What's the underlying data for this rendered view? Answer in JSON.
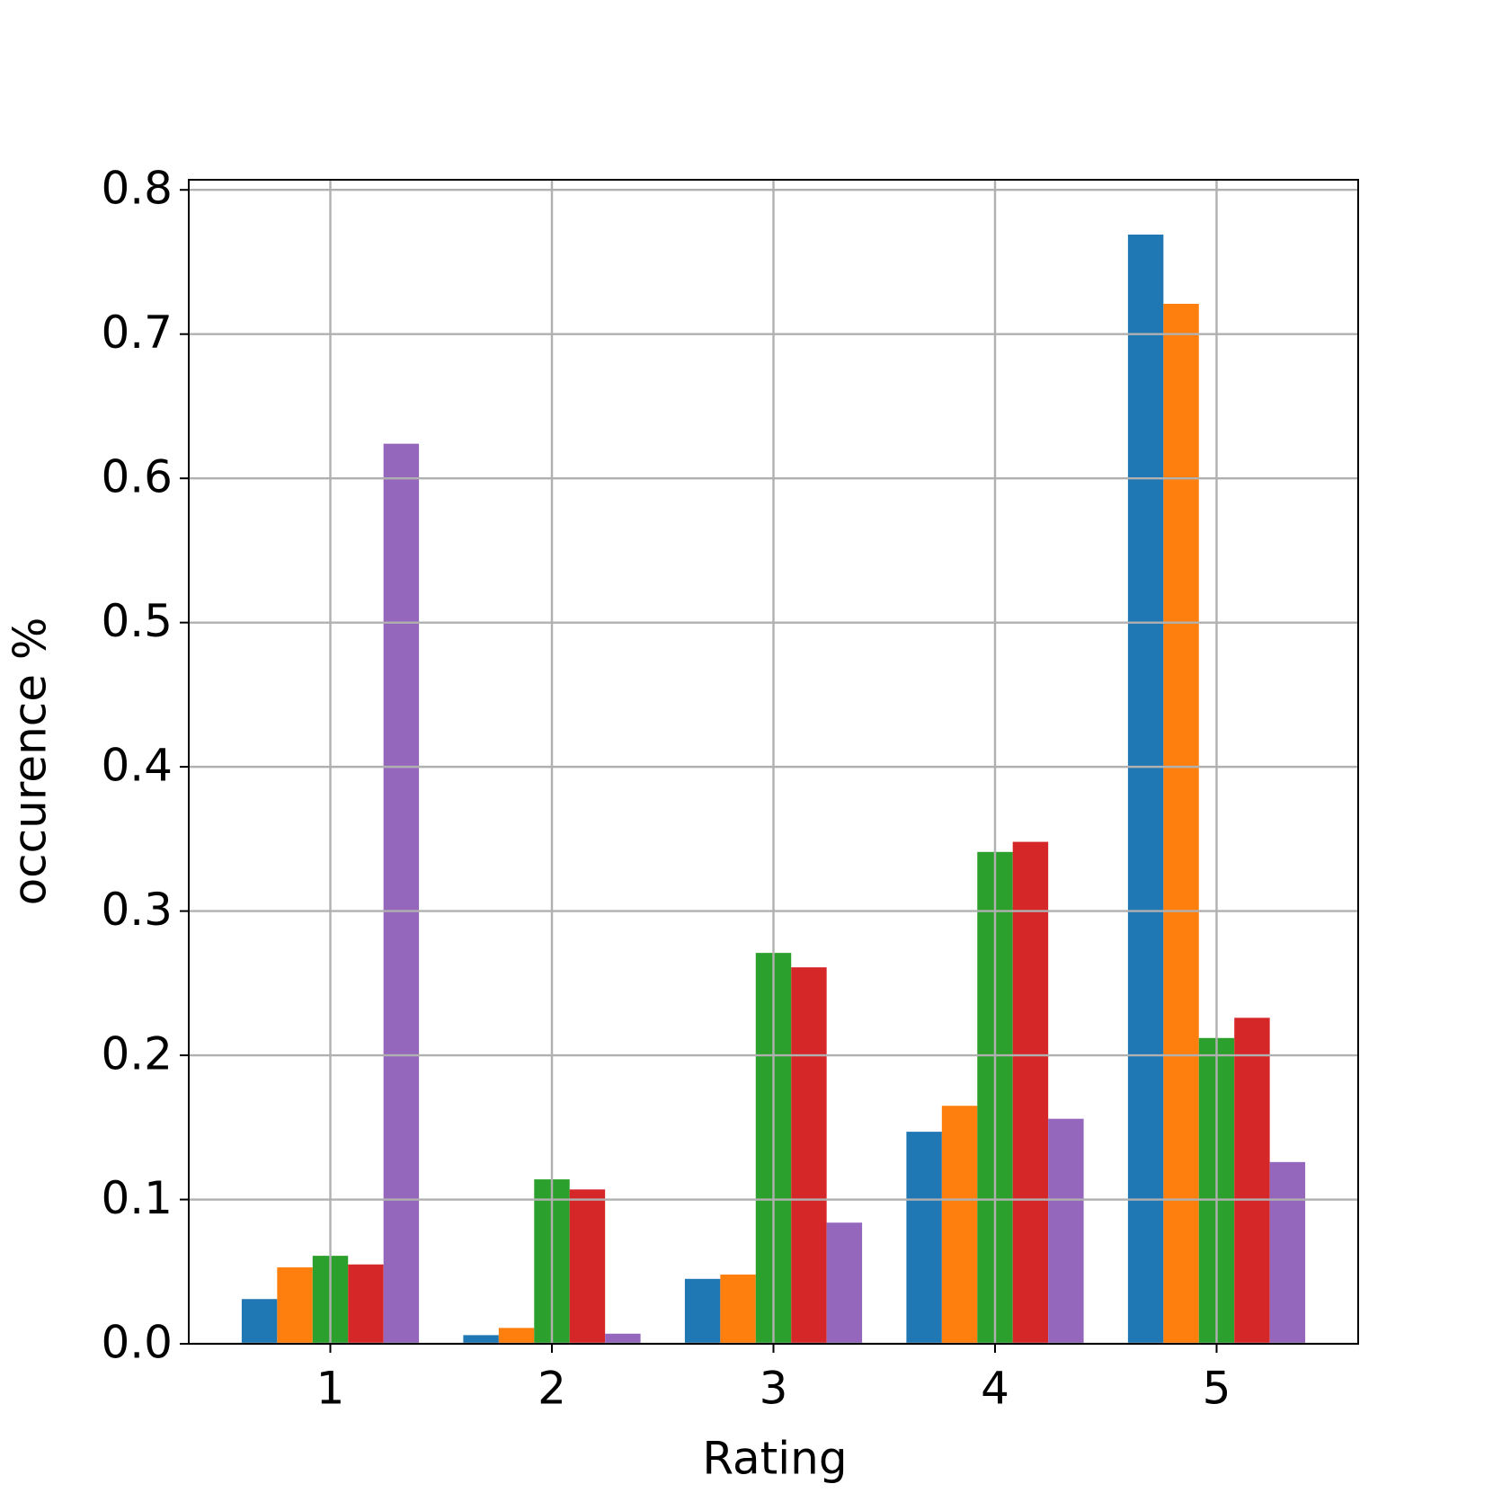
{
  "chart_data": {
    "type": "bar",
    "x_label": "Rating",
    "y_label": "occurence %",
    "categories": [
      "1",
      "2",
      "3",
      "4",
      "5"
    ],
    "series": [
      {
        "color": "#1f77b4",
        "values": [
          0.031,
          0.006,
          0.045,
          0.147,
          0.769
        ]
      },
      {
        "color": "#ff7f0e",
        "values": [
          0.053,
          0.011,
          0.048,
          0.165,
          0.721
        ]
      },
      {
        "color": "#2ca02c",
        "values": [
          0.061,
          0.114,
          0.271,
          0.341,
          0.212
        ]
      },
      {
        "color": "#d62728",
        "values": [
          0.055,
          0.107,
          0.261,
          0.348,
          0.226
        ]
      },
      {
        "color": "#9467bd",
        "values": [
          0.624,
          0.007,
          0.084,
          0.156,
          0.126
        ]
      }
    ],
    "ylim": [
      0,
      0.807
    ],
    "yticks": [
      {
        "value": 0,
        "label": "0.0"
      },
      0.1,
      0.2,
      0.3,
      0.4,
      0.5,
      0.6,
      0.7,
      0.8
    ],
    "grid": true
  }
}
